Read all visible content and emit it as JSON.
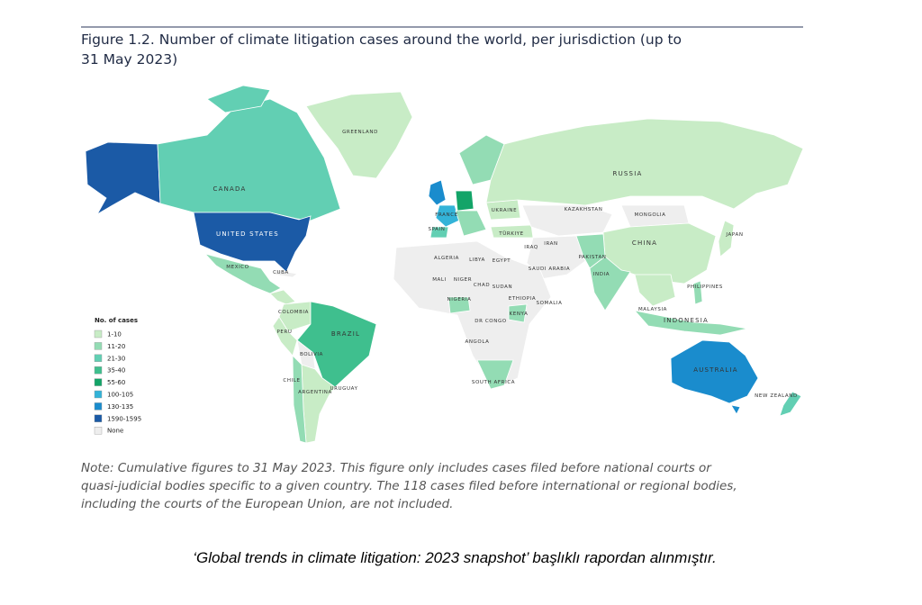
{
  "header": {
    "title_lines": [
      "Figure 1.2. Number of climate litigation cases around the world, per jurisdiction (up to",
      "31 May 2023)"
    ]
  },
  "map": {
    "labels": [
      "GREENLAND",
      "CANADA",
      "UNITED STATES",
      "MEXICO",
      "CUBA",
      "COLOMBIA",
      "PERU",
      "BRAZIL",
      "BOLIVIA",
      "CHILE",
      "ARGENTINA",
      "URUGUAY",
      "RUSSIA",
      "KAZAKHSTAN",
      "MONGOLIA",
      "CHINA",
      "JAPAN",
      "INDIA",
      "PAKISTAN",
      "IRAN",
      "IRAQ",
      "SAUDI ARABIA",
      "TÜRKIYE",
      "UKRAINE",
      "SPAIN",
      "FRANCE",
      "ALGERIA",
      "LIBYA",
      "EGYPT",
      "MALI",
      "NIGER",
      "CHAD",
      "SUDAN",
      "NIGERIA",
      "ETHIOPIA",
      "SOMALIA",
      "KENYA",
      "DR CONGO",
      "ANGOLA",
      "SOUTH AFRICA",
      "PHILIPPINES",
      "MALAYSIA",
      "INDONESIA",
      "AUSTRALIA",
      "NEW ZEALAND"
    ]
  },
  "legend": {
    "title": "No. of cases",
    "entries": [
      {
        "label": "1-10",
        "color": "#c8ecc6"
      },
      {
        "label": "11-20",
        "color": "#93dcb4"
      },
      {
        "label": "21-30",
        "color": "#62cfb3"
      },
      {
        "label": "35-40",
        "color": "#3fbf8e"
      },
      {
        "label": "55-60",
        "color": "#13a468"
      },
      {
        "label": "100-105",
        "color": "#33b3d8"
      },
      {
        "label": "130-135",
        "color": "#1a8ccd"
      },
      {
        "label": "1590-1595",
        "color": "#1b5aa6"
      },
      {
        "label": "None",
        "color": "#eeeeee"
      }
    ]
  },
  "note": [
    "Note: Cumulative figures to 31 May 2023. This figure only includes cases filed before national courts or",
    "quasi-judicial bodies specific to a given country. The 118 cases filed before international or regional bodies,",
    "including the courts of the European Union, are not included."
  ],
  "caption": "‘Global trends in climate litigation: 2023 snapshot’ başlıklı rapordan alınmıştır."
}
